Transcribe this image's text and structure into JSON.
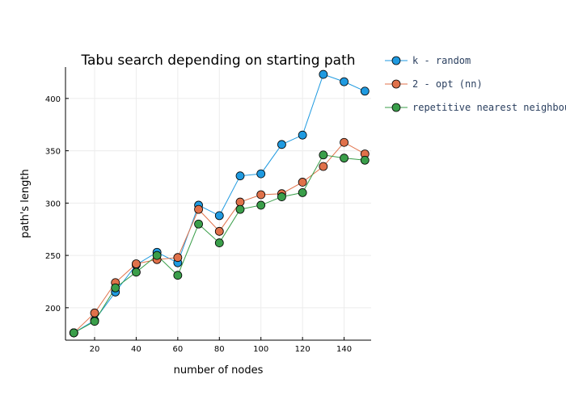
{
  "chart_data": {
    "type": "line",
    "title": "Tabu search depending on starting path",
    "xlabel": "number of nodes",
    "ylabel": "path's length",
    "xlim": [
      6,
      153
    ],
    "ylim": [
      169,
      430
    ],
    "xticks": [
      20,
      40,
      60,
      80,
      100,
      120,
      140
    ],
    "yticks": [
      200,
      250,
      300,
      350,
      400
    ],
    "grid": true,
    "legend_position": "right",
    "x": [
      10,
      20,
      30,
      40,
      50,
      60,
      70,
      80,
      90,
      100,
      110,
      120,
      130,
      140,
      150
    ],
    "series": [
      {
        "name": "k - random",
        "color": "#1f9ae0",
        "values": [
          176,
          188,
          215,
          241,
          253,
          243,
          298,
          288,
          326,
          328,
          356,
          365,
          423,
          416,
          407
        ]
      },
      {
        "name": "2 - opt (nn)",
        "color": "#e0714a",
        "values": [
          176,
          195,
          224,
          242,
          246,
          248,
          294,
          273,
          301,
          308,
          309,
          320,
          335,
          358,
          347
        ]
      },
      {
        "name": "repetitive nearest neighbour",
        "color": "#3a9e4a",
        "values": [
          176,
          187,
          219,
          234,
          250,
          231,
          280,
          262,
          294,
          298,
          306,
          310,
          346,
          343,
          341
        ]
      }
    ]
  }
}
